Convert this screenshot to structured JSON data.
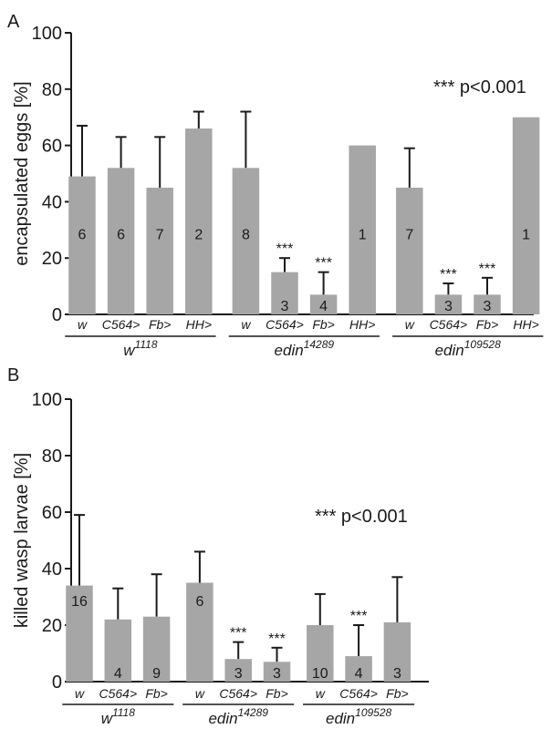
{
  "chart_data": [
    {
      "panel": "A",
      "type": "bar",
      "ylabel": "encapsulated eggs [%]",
      "ylim": [
        0,
        100
      ],
      "yticks": [
        "0",
        "20",
        "40",
        "60",
        "80",
        "100"
      ],
      "annotation": "*** p<0.001",
      "bar_color": "#a6a6a6",
      "categories": [
        "w",
        "C564>",
        "Fb>",
        "HH>",
        "w",
        "C564>",
        "Fb>",
        "HH>",
        "w",
        "C564>",
        "Fb>",
        "HH>"
      ],
      "values": [
        49,
        52,
        45,
        66,
        52,
        15,
        7,
        60,
        45,
        7,
        7,
        70
      ],
      "errors": [
        18,
        11,
        18,
        6,
        20,
        5,
        8,
        0,
        14,
        4,
        6,
        0
      ],
      "n": [
        "6",
        "6",
        "7",
        "2",
        "8",
        "3",
        "4",
        "1",
        "7",
        "3",
        "3",
        "1"
      ],
      "significance": [
        "",
        "",
        "",
        "",
        "",
        "***",
        "***",
        "",
        "",
        "***",
        "***",
        ""
      ],
      "groups": [
        {
          "base": "w",
          "sup": "1118",
          "count": 4
        },
        {
          "base": "edin",
          "sup": "14289",
          "count": 4
        },
        {
          "base": "edin",
          "sup": "109528",
          "count": 4
        }
      ]
    },
    {
      "panel": "B",
      "type": "bar",
      "ylabel": "killed wasp larvae [%]",
      "ylim": [
        0,
        100
      ],
      "yticks": [
        "0",
        "20",
        "40",
        "60",
        "80",
        "100"
      ],
      "annotation": "*** p<0.001",
      "bar_color": "#a6a6a6",
      "categories": [
        "w",
        "C564>",
        "Fb>",
        "w",
        "C564>",
        "Fb>",
        "w",
        "C564>",
        "Fb>"
      ],
      "values": [
        34,
        22,
        23,
        35,
        8,
        7,
        20,
        9,
        21
      ],
      "errors": [
        25,
        11,
        15,
        11,
        6,
        5,
        11,
        11,
        16
      ],
      "n": [
        "16",
        "4",
        "9",
        "6",
        "3",
        "3",
        "10",
        "4",
        "3"
      ],
      "significance": [
        "",
        "",
        "",
        "",
        "***",
        "***",
        "",
        "***",
        ""
      ],
      "groups": [
        {
          "base": "w",
          "sup": "1118",
          "count": 3
        },
        {
          "base": "edin",
          "sup": "14289",
          "count": 3
        },
        {
          "base": "edin",
          "sup": "109528",
          "count": 3
        }
      ]
    }
  ]
}
